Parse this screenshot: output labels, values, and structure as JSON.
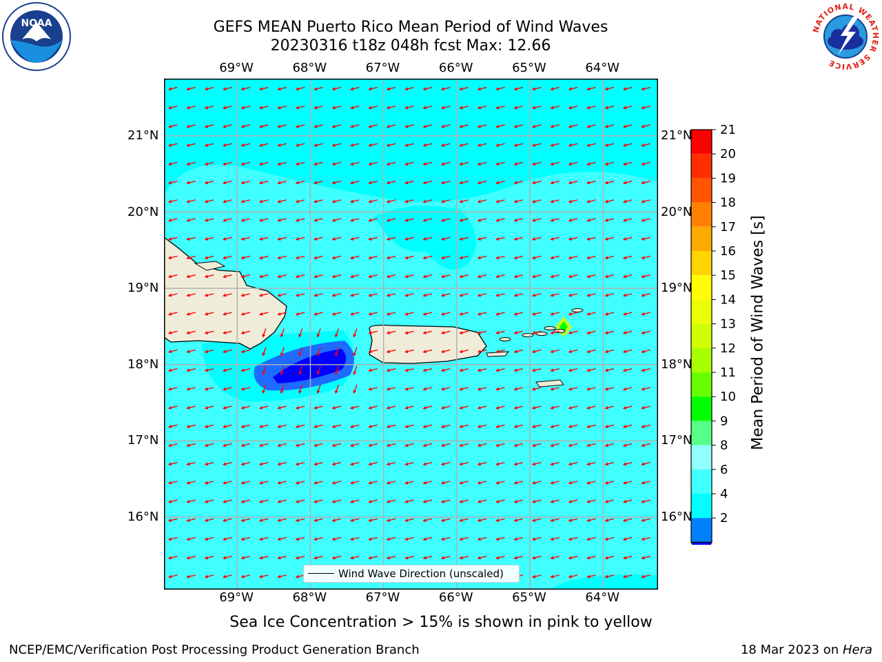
{
  "header": {
    "title_line1": "GEFS MEAN Puerto Rico Mean Period of Wind Waves",
    "title_line2": "20230316 t18z 048h fcst   Max: 12.66"
  },
  "map": {
    "lon_ticks": [
      {
        "value": -69,
        "label": "69°W"
      },
      {
        "value": -68,
        "label": "68°W"
      },
      {
        "value": -67,
        "label": "67°W"
      },
      {
        "value": -66,
        "label": "66°W"
      },
      {
        "value": -65,
        "label": "65°W"
      },
      {
        "value": -64,
        "label": "64°W"
      }
    ],
    "lat_ticks": [
      {
        "value": 21,
        "label": "21°N"
      },
      {
        "value": 20,
        "label": "20°N"
      },
      {
        "value": 19,
        "label": "19°N"
      },
      {
        "value": 18,
        "label": "18°N"
      },
      {
        "value": 17,
        "label": "17°N"
      },
      {
        "value": 16,
        "label": "16°N"
      }
    ],
    "lon_range": [
      -70,
      -63.25
    ],
    "lat_range": [
      15.05,
      21.75
    ],
    "colors": {
      "sea_base": "#00ffff",
      "sea_light": "#40ffff",
      "land": "#efedda",
      "blue_mid": "#1e6bff",
      "blue_dark": "#0000ff",
      "arrow": "#ff0000",
      "grid": "#b0b0b0"
    },
    "legend_label": "Wind Wave Direction (unscaled)"
  },
  "colorbar": {
    "label": "Mean Period of Wind Waves [s]",
    "ticks": [
      "21",
      "20",
      "19",
      "18",
      "17",
      "16",
      "15",
      "14",
      "13",
      "12",
      "11",
      "10",
      "9",
      "8",
      "6",
      "4",
      "2"
    ],
    "colors": [
      "#ff0000",
      "#ff2d00",
      "#ff5500",
      "#ff8000",
      "#ffaa00",
      "#ffd400",
      "#ffff00",
      "#eaff00",
      "#d0ff00",
      "#a8ff00",
      "#66ff00",
      "#00ff00",
      "#55ff88",
      "#90ffff",
      "#40ffff",
      "#00ffff",
      "#0080ff",
      "#0000ff"
    ],
    "under_color": "#0000ff"
  },
  "note": "Sea Ice Concentration > 15% is shown in pink to yellow",
  "footer": {
    "left": "NCEP/EMC/Verification Post Processing Product Generation Branch",
    "right_prefix": "18 Mar 2023 on ",
    "right_machine": "Hera"
  },
  "logos": {
    "noaa_text": "NOAA",
    "nws_ring_text": "NATIONAL WEATHER SERVICE"
  }
}
